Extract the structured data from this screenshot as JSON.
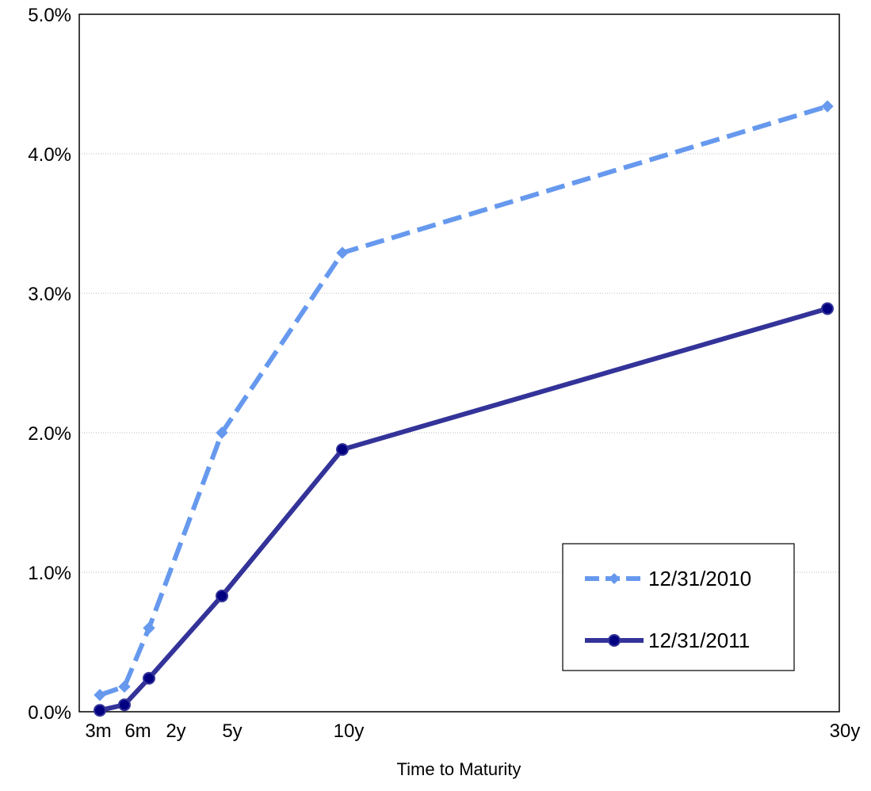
{
  "chart_data": {
    "type": "line",
    "title": "",
    "xlabel": "Time to Maturity",
    "ylabel": "",
    "x": [
      0.25,
      0.5,
      2,
      5,
      10,
      30
    ],
    "x_tick_labels": [
      "3m",
      "6m",
      "2y",
      "5y",
      "10y",
      "30y"
    ],
    "xlim": [
      0,
      30
    ],
    "ylim": [
      0,
      5.0
    ],
    "y_ticks": [
      0,
      1,
      2,
      3,
      4,
      5
    ],
    "y_tick_labels": [
      "0.0%",
      "1.0%",
      "2.0%",
      "3.0%",
      "4.0%",
      "5.0%"
    ],
    "y_unit": "%",
    "grid": "horizontal",
    "legend_position": "bottom-right",
    "series": [
      {
        "name": "12/31/2010",
        "values": [
          0.12,
          0.18,
          0.6,
          2.0,
          3.29,
          4.34
        ],
        "color": "#6699EE",
        "line_style": "dashed",
        "marker": "diamond"
      },
      {
        "name": "12/31/2011",
        "values": [
          0.01,
          0.05,
          0.24,
          0.83,
          1.88,
          2.89
        ],
        "color": "#333399",
        "line_style": "solid",
        "marker": "circle"
      }
    ]
  }
}
